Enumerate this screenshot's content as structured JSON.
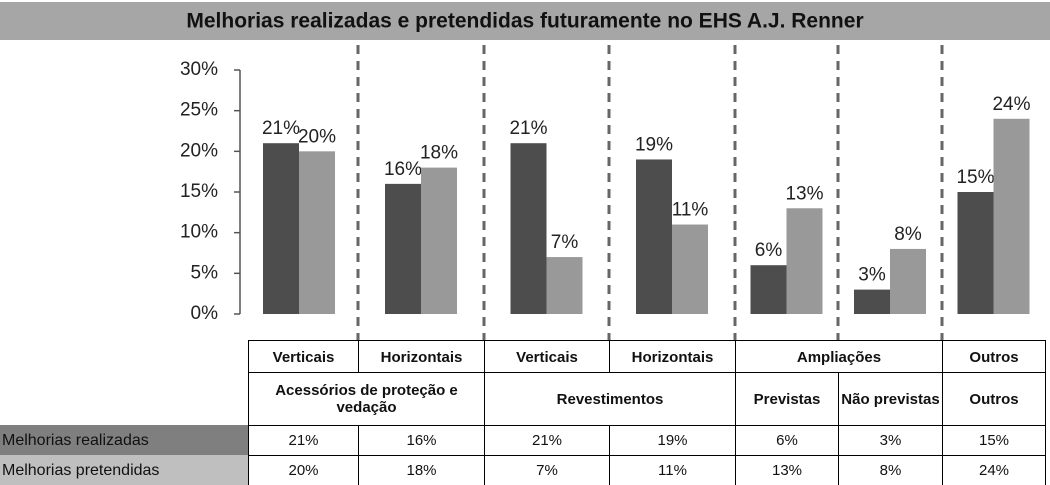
{
  "chart_data": {
    "type": "bar",
    "title": "Melhorias realizadas e pretendidas futuramente no EHS A.J. Renner",
    "category_rows": [
      [
        "Verticais",
        "Horizontais",
        "Verticais",
        "Horizontais",
        "Ampliações",
        "Outros"
      ],
      [
        "Acessórios de proteção e vedação",
        "Revestimentos",
        "Previstas",
        "Não previstas",
        "Outros"
      ]
    ],
    "series": [
      {
        "name": "Melhorias realizadas",
        "color": "#4d4d4d",
        "values": [
          21,
          16,
          21,
          19,
          6,
          3,
          15
        ],
        "value_labels": [
          "21%",
          "16%",
          "21%",
          "19%",
          "6%",
          "3%",
          "15%"
        ]
      },
      {
        "name": "Melhorias pretendidas",
        "color": "#999999",
        "values": [
          20,
          18,
          7,
          11,
          13,
          8,
          24
        ],
        "value_labels": [
          "20%",
          "18%",
          "7%",
          "11%",
          "13%",
          "8%",
          "24%"
        ]
      }
    ],
    "ylim": [
      0,
      30
    ],
    "yticks": [
      {
        "value": 0,
        "label": "0%"
      },
      {
        "value": 5,
        "label": "5%"
      },
      {
        "value": 10,
        "label": "10%"
      },
      {
        "value": 15,
        "label": "15%"
      },
      {
        "value": 20,
        "label": "20%"
      },
      {
        "value": 25,
        "label": "25%"
      },
      {
        "value": 30,
        "label": "30%"
      }
    ]
  }
}
